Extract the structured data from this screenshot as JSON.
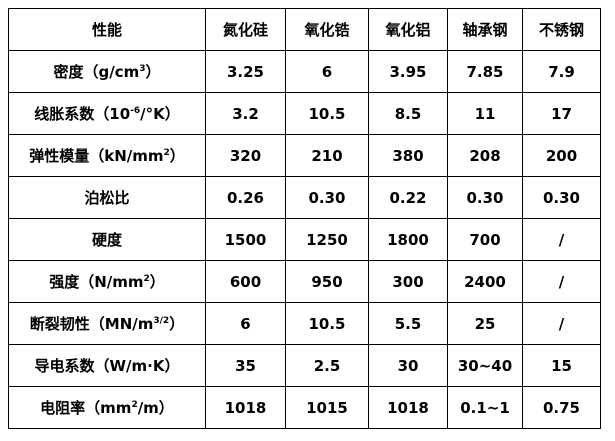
{
  "table": {
    "header": [
      "性能",
      "氮化硅",
      "氧化锆",
      "氧化铝",
      "轴承钢",
      "不锈钢"
    ],
    "rows": [
      {
        "label": [
          {
            "text": "密度（g/cm"
          },
          {
            "sup": "3"
          },
          {
            "text": "）"
          }
        ],
        "cells": [
          "3.25",
          "6",
          "3.95",
          "7.85",
          "7.9"
        ]
      },
      {
        "label": [
          {
            "text": "线胀系数（10"
          },
          {
            "sup": "-6"
          },
          {
            "text": "/°K）"
          }
        ],
        "cells": [
          "3.2",
          "10.5",
          "8.5",
          "11",
          "17"
        ]
      },
      {
        "label": [
          {
            "text": "弹性模量（kN/mm"
          },
          {
            "sup": "2"
          },
          {
            "text": "）"
          }
        ],
        "cells": [
          "320",
          "210",
          "380",
          "208",
          "200"
        ]
      },
      {
        "label": [
          {
            "text": "泊松比"
          }
        ],
        "cells": [
          "0.26",
          "0.30",
          "0.22",
          "0.30",
          "0.30"
        ]
      },
      {
        "label": [
          {
            "text": "硬度"
          }
        ],
        "cells": [
          "1500",
          "1250",
          "1800",
          "700",
          "/"
        ]
      },
      {
        "label": [
          {
            "text": "强度（N/mm"
          },
          {
            "sup": "2"
          },
          {
            "text": "）"
          }
        ],
        "cells": [
          "600",
          "950",
          "300",
          "2400",
          "/"
        ]
      },
      {
        "label": [
          {
            "text": "断裂韧性（MN/m"
          },
          {
            "sup": "3/2"
          },
          {
            "text": "）"
          }
        ],
        "cells": [
          "6",
          "10.5",
          "5.5",
          "25",
          "/"
        ]
      },
      {
        "label": [
          {
            "text": "导电系数（W/m·K）"
          }
        ],
        "cells": [
          "35",
          "2.5",
          "30",
          "30~40",
          "15"
        ]
      },
      {
        "label": [
          {
            "text": "电阻率（mm"
          },
          {
            "sup": "2"
          },
          {
            "text": "/m）"
          }
        ],
        "cells": [
          "1018",
          "1015",
          "1018",
          "0.1~1",
          "0.75"
        ]
      }
    ]
  }
}
